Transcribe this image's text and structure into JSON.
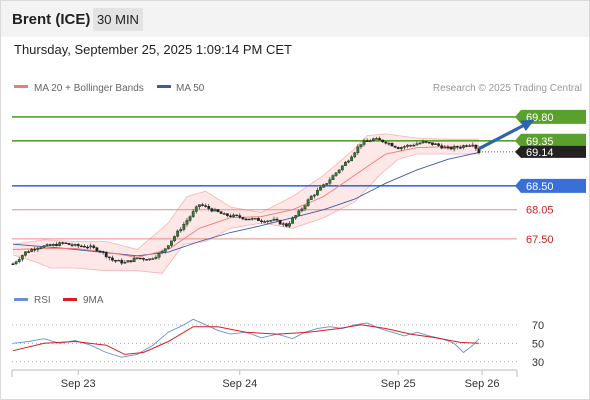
{
  "header": {
    "instrument": "Brent (ICE)",
    "timeframe": "30 MIN",
    "datetime": "Thursday, September 25, 2025 1:09:14 PM CET"
  },
  "legend": {
    "ma20_label": "MA 20 + Bollinger Bands",
    "ma50_label": "MA 50",
    "credit": "Research © 2025 Trading Central",
    "rsi_label": "RSI",
    "rsi_ma_label": "9MA"
  },
  "colors": {
    "candle": "#2f7d2f",
    "ma20": "#f07a7a",
    "bollinger_fill": "#fde3e3",
    "ma50": "#3b5ba5",
    "resistance": "#5aa02c",
    "pivot": "#3a6fd8",
    "support": "#f08a8a",
    "current": "#222222",
    "arrow": "#2e63ad",
    "rsi": "#6a8fd8",
    "rsi_ma": "#d62020"
  },
  "chart_data": [
    {
      "type": "candlestick",
      "title": "",
      "x_ticks": [
        "Sep 23",
        "Sep 24",
        "Sep 25",
        "Sep 26"
      ],
      "ylim": [
        66.8,
        70.1
      ],
      "current_price": "69.14",
      "levels": [
        {
          "value": 69.8,
          "label": "69.80",
          "kind": "resistance"
        },
        {
          "value": 69.35,
          "label": "69.35",
          "kind": "resistance"
        },
        {
          "value": 68.5,
          "label": "68.50",
          "kind": "pivot"
        },
        {
          "value": 68.05,
          "label": "68.05",
          "kind": "support"
        },
        {
          "value": 67.5,
          "label": "67.50",
          "kind": "support"
        }
      ],
      "close_path": [
        [
          0,
          67.03
        ],
        [
          4,
          67.25
        ],
        [
          8,
          67.35
        ],
        [
          12,
          67.37
        ],
        [
          16,
          67.42
        ],
        [
          20,
          67.37
        ],
        [
          24,
          67.36
        ],
        [
          28,
          67.28
        ],
        [
          32,
          67.1
        ],
        [
          36,
          67.05
        ],
        [
          40,
          67.14
        ],
        [
          44,
          67.12
        ],
        [
          48,
          67.25
        ],
        [
          52,
          67.55
        ],
        [
          56,
          67.85
        ],
        [
          60,
          68.15
        ],
        [
          64,
          68.05
        ],
        [
          68,
          67.95
        ],
        [
          72,
          67.92
        ],
        [
          76,
          67.88
        ],
        [
          80,
          67.85
        ],
        [
          84,
          67.85
        ],
        [
          88,
          67.75
        ],
        [
          92,
          68.0
        ],
        [
          96,
          68.3
        ],
        [
          100,
          68.5
        ],
        [
          104,
          68.75
        ],
        [
          108,
          69.0
        ],
        [
          112,
          69.3
        ],
        [
          116,
          69.38
        ],
        [
          120,
          69.33
        ],
        [
          124,
          69.22
        ],
        [
          128,
          69.27
        ],
        [
          132,
          69.32
        ],
        [
          136,
          69.28
        ],
        [
          140,
          69.2
        ],
        [
          144,
          69.24
        ],
        [
          148,
          69.3
        ],
        [
          150,
          69.14
        ]
      ],
      "ma20_path": [
        [
          0,
          67.3
        ],
        [
          10,
          67.32
        ],
        [
          20,
          67.32
        ],
        [
          30,
          67.25
        ],
        [
          40,
          67.15
        ],
        [
          50,
          67.3
        ],
        [
          60,
          67.7
        ],
        [
          70,
          67.9
        ],
        [
          80,
          67.92
        ],
        [
          90,
          68.05
        ],
        [
          100,
          68.3
        ],
        [
          110,
          68.7
        ],
        [
          120,
          69.1
        ],
        [
          130,
          69.22
        ],
        [
          140,
          69.24
        ],
        [
          150,
          69.25
        ]
      ],
      "bollinger_upper": [
        [
          0,
          67.4
        ],
        [
          10,
          67.48
        ],
        [
          20,
          67.45
        ],
        [
          30,
          67.45
        ],
        [
          40,
          67.3
        ],
        [
          50,
          67.8
        ],
        [
          56,
          68.3
        ],
        [
          62,
          68.4
        ],
        [
          70,
          68.1
        ],
        [
          80,
          68.0
        ],
        [
          90,
          68.3
        ],
        [
          100,
          68.7
        ],
        [
          110,
          69.2
        ],
        [
          114,
          69.45
        ],
        [
          120,
          69.48
        ],
        [
          130,
          69.4
        ],
        [
          140,
          69.38
        ],
        [
          150,
          69.38
        ]
      ],
      "bollinger_lower": [
        [
          0,
          67.2
        ],
        [
          8,
          67.05
        ],
        [
          12,
          66.95
        ],
        [
          20,
          66.95
        ],
        [
          30,
          66.9
        ],
        [
          40,
          66.9
        ],
        [
          48,
          66.85
        ],
        [
          55,
          67.4
        ],
        [
          62,
          67.45
        ],
        [
          70,
          67.7
        ],
        [
          80,
          67.8
        ],
        [
          90,
          67.7
        ],
        [
          100,
          67.9
        ],
        [
          110,
          68.2
        ],
        [
          118,
          68.7
        ],
        [
          124,
          69.0
        ],
        [
          130,
          69.1
        ],
        [
          140,
          69.1
        ],
        [
          150,
          69.1
        ]
      ],
      "ma50_path": [
        [
          0,
          67.4
        ],
        [
          15,
          67.33
        ],
        [
          30,
          67.24
        ],
        [
          40,
          67.18
        ],
        [
          50,
          67.25
        ],
        [
          60,
          67.45
        ],
        [
          70,
          67.62
        ],
        [
          80,
          67.75
        ],
        [
          90,
          67.9
        ],
        [
          100,
          68.05
        ],
        [
          110,
          68.25
        ],
        [
          120,
          68.55
        ],
        [
          130,
          68.8
        ],
        [
          140,
          69.0
        ],
        [
          150,
          69.13
        ]
      ],
      "projection": {
        "from": [
          150,
          69.2
        ],
        "to": [
          167,
          69.72
        ]
      }
    },
    {
      "type": "line",
      "title": "",
      "series": [
        {
          "name": "RSI",
          "points": [
            [
              0,
              50
            ],
            [
              5,
              52
            ],
            [
              10,
              55
            ],
            [
              15,
              50
            ],
            [
              20,
              53
            ],
            [
              25,
              48
            ],
            [
              30,
              40
            ],
            [
              35,
              35
            ],
            [
              40,
              38
            ],
            [
              45,
              48
            ],
            [
              50,
              62
            ],
            [
              55,
              70
            ],
            [
              58,
              76
            ],
            [
              62,
              70
            ],
            [
              66,
              64
            ],
            [
              70,
              60
            ],
            [
              75,
              62
            ],
            [
              80,
              56
            ],
            [
              85,
              60
            ],
            [
              90,
              55
            ],
            [
              94,
              62
            ],
            [
              98,
              66
            ],
            [
              102,
              68
            ],
            [
              106,
              66
            ],
            [
              110,
              70
            ],
            [
              114,
              72
            ],
            [
              118,
              66
            ],
            [
              122,
              62
            ],
            [
              126,
              58
            ],
            [
              130,
              62
            ],
            [
              134,
              58
            ],
            [
              138,
              55
            ],
            [
              142,
              50
            ],
            [
              145,
              40
            ],
            [
              148,
              48
            ],
            [
              150,
              55
            ]
          ]
        },
        {
          "name": "9MA",
          "points": [
            [
              0,
              42
            ],
            [
              10,
              50
            ],
            [
              20,
              52
            ],
            [
              30,
              48
            ],
            [
              36,
              38
            ],
            [
              42,
              40
            ],
            [
              50,
              52
            ],
            [
              58,
              68
            ],
            [
              66,
              68
            ],
            [
              75,
              62
            ],
            [
              85,
              60
            ],
            [
              95,
              62
            ],
            [
              105,
              66
            ],
            [
              112,
              70
            ],
            [
              120,
              66
            ],
            [
              128,
              60
            ],
            [
              136,
              56
            ],
            [
              144,
              51
            ],
            [
              150,
              50
            ]
          ]
        }
      ],
      "ylim": [
        20,
        85
      ],
      "y_ticks": [
        "70",
        "50",
        "30"
      ]
    }
  ]
}
